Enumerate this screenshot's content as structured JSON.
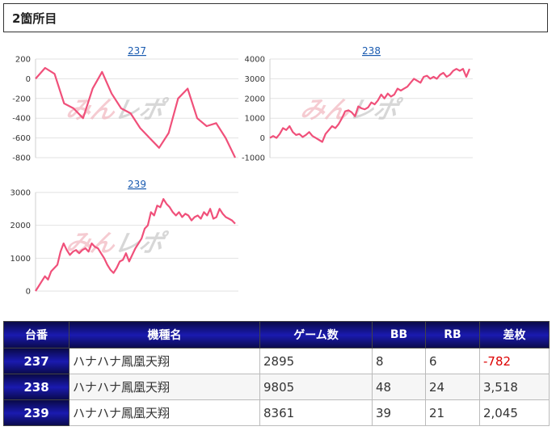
{
  "header": {
    "title": "2箇所目"
  },
  "watermark": {
    "part1": "みん",
    "part2": "レポ"
  },
  "line_color": "#f0507a",
  "chart_data": [
    {
      "type": "line",
      "title": "237",
      "ylim": [
        -800,
        200
      ],
      "yticks": [
        200,
        0,
        -200,
        -400,
        -600,
        -800
      ],
      "values": [
        0,
        110,
        50,
        -250,
        -300,
        -400,
        -100,
        70,
        -150,
        -300,
        -350,
        -500,
        -600,
        -700,
        -550,
        -200,
        -100,
        -400,
        -480,
        -450,
        -600,
        -800
      ]
    },
    {
      "type": "line",
      "title": "238",
      "ylim": [
        -1000,
        4000
      ],
      "yticks": [
        4000,
        3000,
        2000,
        1000,
        0,
        -1000
      ],
      "values": [
        0,
        100,
        0,
        200,
        500,
        400,
        600,
        300,
        150,
        200,
        50,
        150,
        300,
        100,
        0,
        -100,
        -200,
        200,
        400,
        600,
        500,
        700,
        1000,
        1350,
        1400,
        1300,
        1100,
        1600,
        1500,
        1450,
        1550,
        1800,
        1700,
        1900,
        2200,
        2000,
        2250,
        2100,
        2200,
        2500,
        2400,
        2500,
        2600,
        2800,
        3000,
        2900,
        2800,
        3100,
        3150,
        3000,
        3100,
        3000,
        3200,
        3300,
        3100,
        3200,
        3400,
        3500,
        3400,
        3500,
        3100,
        3500
      ]
    },
    {
      "type": "line",
      "title": "239",
      "ylim": [
        0,
        3000
      ],
      "yticks": [
        3000,
        2000,
        1000,
        0
      ],
      "values": [
        0,
        150,
        300,
        450,
        350,
        600,
        700,
        800,
        1200,
        1450,
        1250,
        1100,
        1200,
        1250,
        1150,
        1250,
        1300,
        1200,
        1450,
        1350,
        1300,
        1150,
        1000,
        800,
        650,
        550,
        700,
        900,
        950,
        1150,
        900,
        1100,
        1300,
        1450,
        1600,
        1900,
        2000,
        2400,
        2300,
        2600,
        2550,
        2800,
        2650,
        2550,
        2400,
        2300,
        2400,
        2250,
        2350,
        2300,
        2150,
        2250,
        2300,
        2200,
        2400,
        2300,
        2500,
        2200,
        2250,
        2500,
        2350,
        2250,
        2200,
        2150,
        2050
      ]
    }
  ],
  "table": {
    "headers": [
      "台番",
      "機種名",
      "ゲーム数",
      "BB",
      "RB",
      "差枚"
    ],
    "rows": [
      {
        "num": "237",
        "name": "ハナハナ鳳凰天翔",
        "games": "2895",
        "bb": "8",
        "rb": "6",
        "diff": "-782",
        "negative": true
      },
      {
        "num": "238",
        "name": "ハナハナ鳳凰天翔",
        "games": "9805",
        "bb": "48",
        "rb": "24",
        "diff": "3,518",
        "negative": false
      },
      {
        "num": "239",
        "name": "ハナハナ鳳凰天翔",
        "games": "8361",
        "bb": "39",
        "rb": "21",
        "diff": "2,045",
        "negative": false
      }
    ]
  }
}
